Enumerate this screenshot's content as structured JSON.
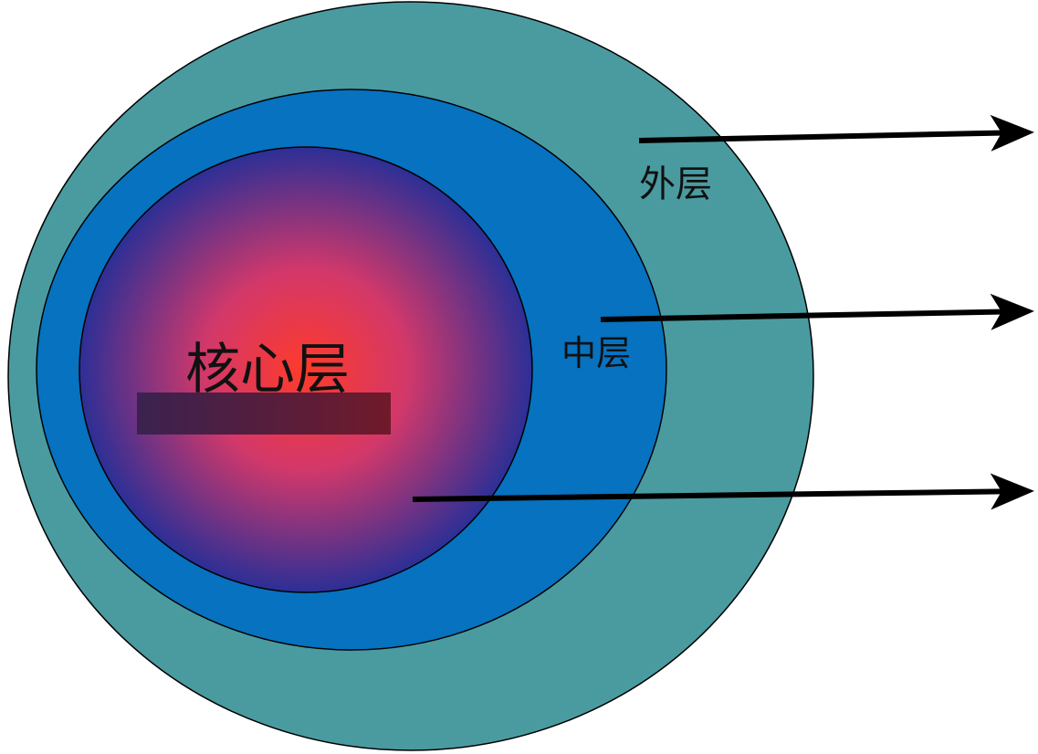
{
  "layers": {
    "outer": {
      "label": "外层",
      "color": "#4A9BA0"
    },
    "middle": {
      "label": "中层",
      "color": "#0672C0"
    },
    "core": {
      "label": "核心层",
      "center_color": "#FF3A2A",
      "edge_color": "#2C2F96",
      "label_bar_color": "#4A2346"
    }
  },
  "arrow_color": "#000000"
}
